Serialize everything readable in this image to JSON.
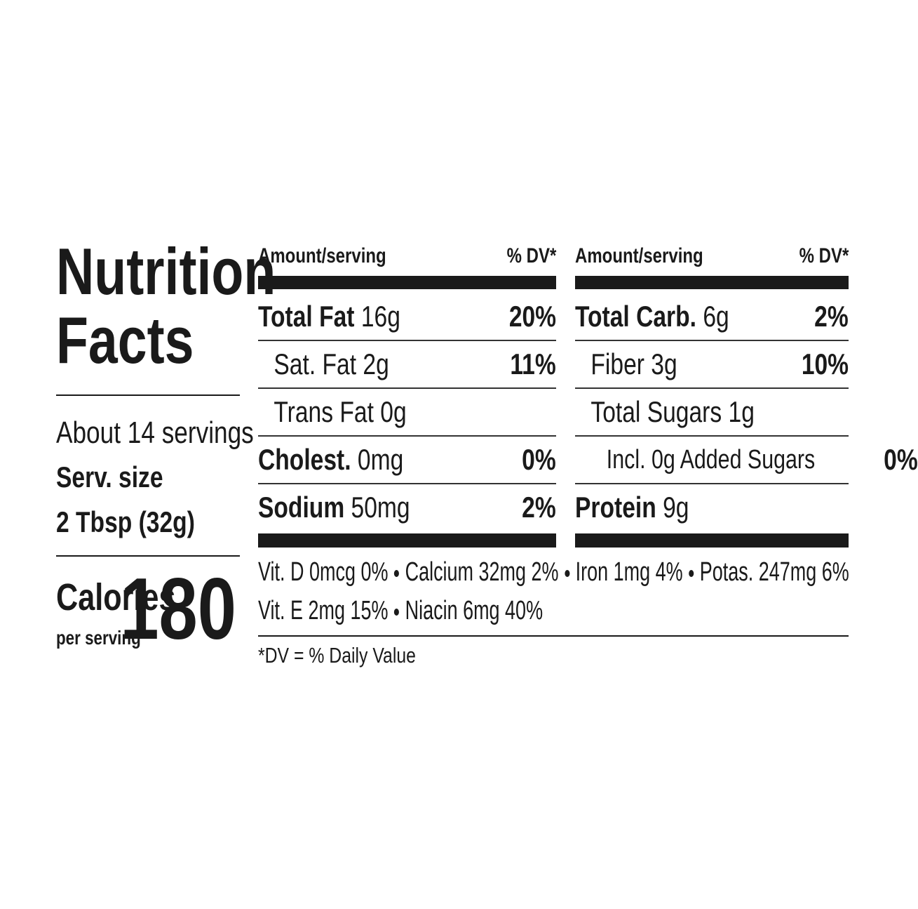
{
  "title": [
    "Nutrition",
    "Facts"
  ],
  "servings": "About 14 servings",
  "serving_size_label": "Serv. size",
  "serving_size": "2 Tbsp (32g)",
  "calories_label": "Calories",
  "calories_note": "per serving",
  "calories": 180,
  "columns": [
    {
      "header": {
        "amount": "Amount/serving",
        "dv": "% DV*"
      },
      "rows": [
        {
          "name": "Total Fat",
          "amount": "16g",
          "dv": "20%"
        },
        {
          "name": "Sat. Fat",
          "amount": "2g",
          "dv": "11%"
        },
        {
          "name": "Trans Fat",
          "amount": "0g"
        },
        {
          "name": "Cholest.",
          "amount": "0mg",
          "dv": "0%"
        },
        {
          "name": "Sodium",
          "amount": "50mg",
          "dv": "2%"
        }
      ]
    },
    {
      "header": {
        "amount": "Amount/serving",
        "dv": "% DV*"
      },
      "rows": [
        {
          "name": "Total Carb.",
          "amount": "6g",
          "dv": "2%"
        },
        {
          "name": "Fiber",
          "amount": "3g",
          "dv": "10%"
        },
        {
          "name": "Total Sugars",
          "amount": "1g"
        },
        {
          "name": "Incl. 0g Added Sugars",
          "dv": "0%"
        },
        {
          "name": "Protein",
          "amount": "9g"
        }
      ]
    }
  ],
  "vitamins": [
    "Vit. D 0mcg 0%",
    "Calcium 32mg 2%",
    "Iron 1mg 4%",
    "Potas. 247mg 6%",
    "Vit. E 2mg 15%",
    "Niacin 6mg 40%"
  ],
  "footnote": "*DV = % Daily Value"
}
